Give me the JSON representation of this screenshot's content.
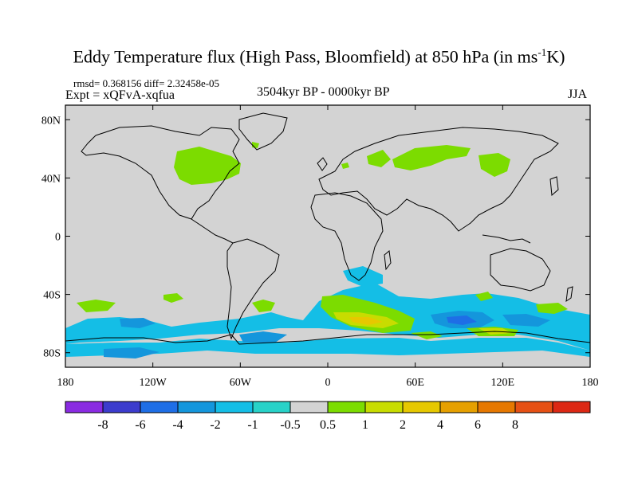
{
  "header": {
    "title_main": "Eddy Temperature flux (High Pass, Bloomfield) at 850 hPa (in ms",
    "title_sup": "-1",
    "title_end": "K)",
    "stats": "rmsd= 0.368156 diff= 2.32458e-05",
    "experiment": "Expt = xQFvA-xqfua",
    "period": "3504kyr BP - 0000kyr BP",
    "season": "JJA"
  },
  "map": {
    "background_color": "#d3d3d3",
    "lat_labels": [
      "80N",
      "40N",
      "0",
      "40S",
      "80S"
    ],
    "lon_labels": [
      "180",
      "120W",
      "60W",
      "0",
      "60E",
      "120E",
      "180"
    ]
  },
  "colorbar": {
    "colors": [
      "#8a2be2",
      "#3c3ccd",
      "#1e6ee6",
      "#1496dc",
      "#14bee6",
      "#28d2c8",
      "#d3d3d3",
      "#7cdc00",
      "#c8dc00",
      "#e6c800",
      "#e6a000",
      "#e67800",
      "#e65014",
      "#dc2814"
    ],
    "labels": [
      "-8",
      "-6",
      "-4",
      "-2",
      "-1",
      "-0.5",
      "0.5",
      "1",
      "2",
      "4",
      "6",
      "8"
    ]
  }
}
